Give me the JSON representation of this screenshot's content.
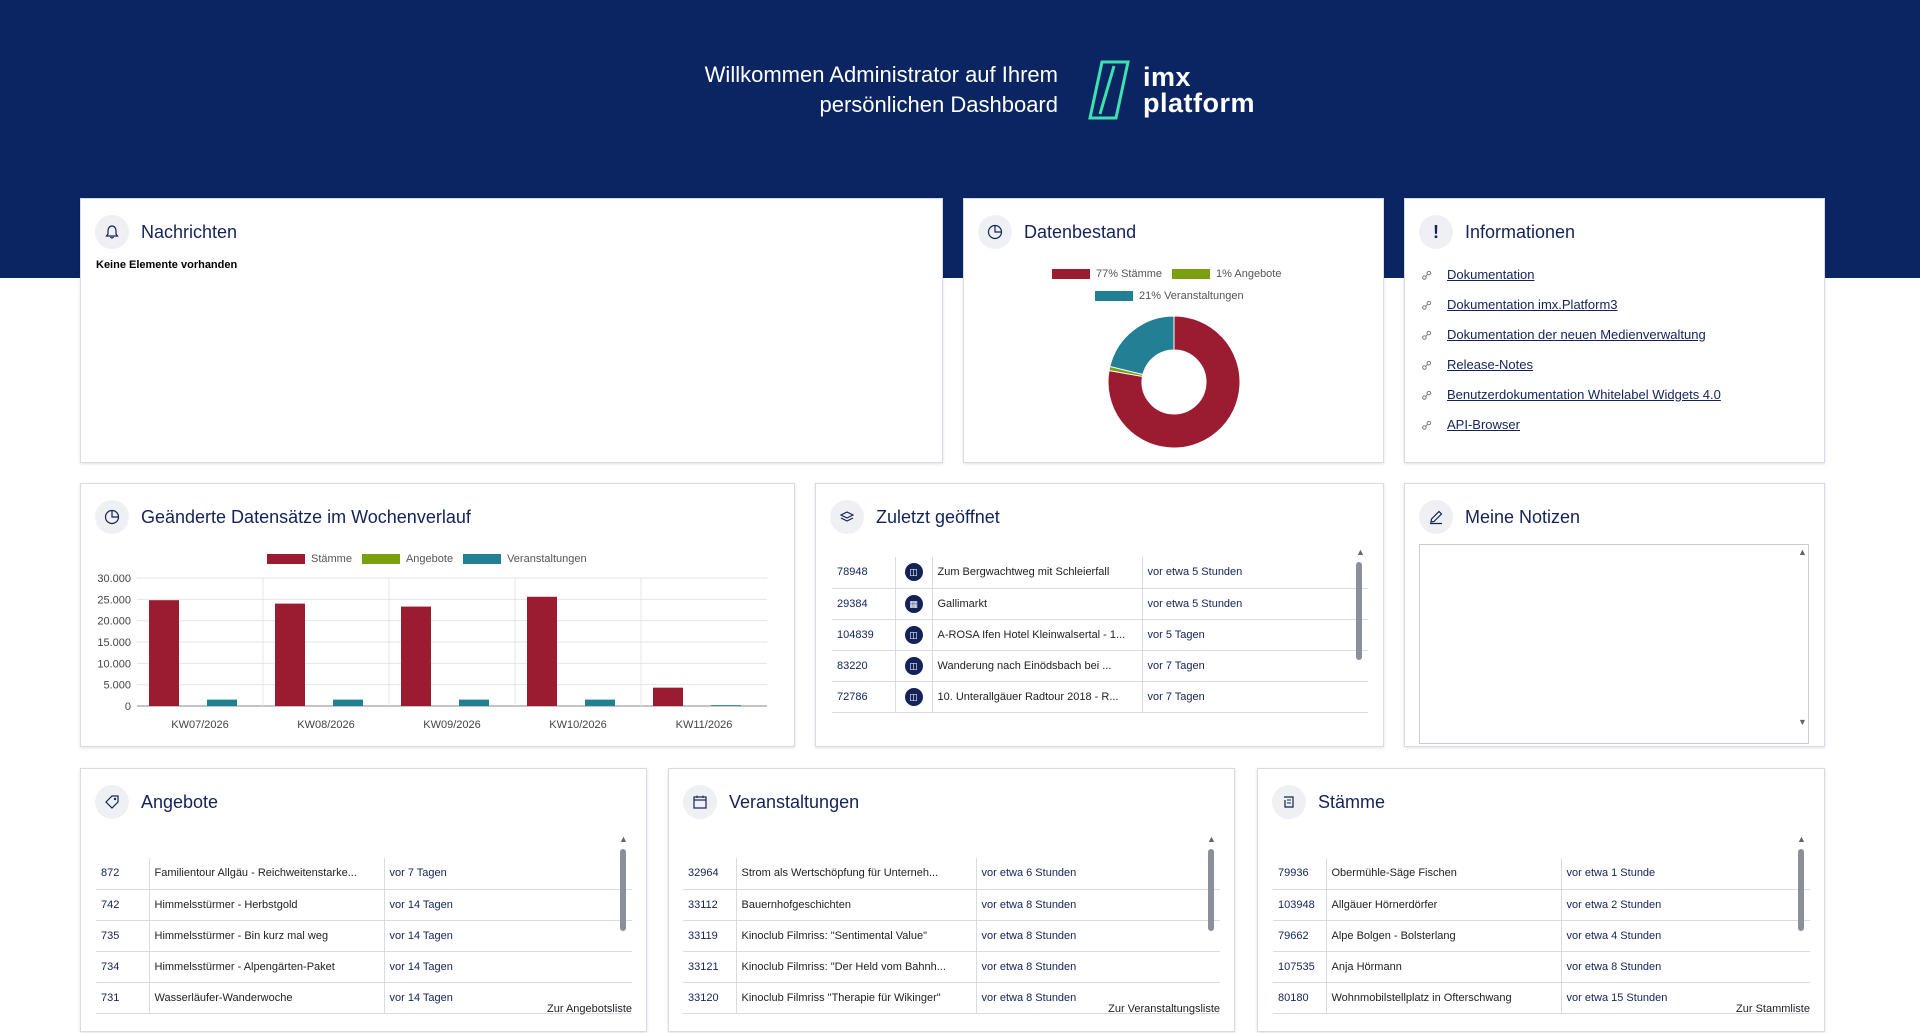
{
  "header": {
    "welcome_line1": "Willkommen Administrator auf Ihrem",
    "welcome_line2": "persönlichen Dashboard",
    "logo_line1": "imx",
    "logo_line2": "platform",
    "band_color": "#0b2563"
  },
  "nachrichten": {
    "title": "Nachrichten",
    "icon": "bell-icon",
    "empty_text": "Keine Elemente vorhanden"
  },
  "datenbestand": {
    "title": "Datenbestand",
    "icon": "pie-chart-icon",
    "legend": [
      {
        "label": "77% Stämme",
        "color": "#9b1b30"
      },
      {
        "label": "1% Angebote",
        "color": "#7aa010"
      },
      {
        "label": "21% Veranstaltungen",
        "color": "#237f93"
      }
    ],
    "chart_data": {
      "type": "pie",
      "categories": [
        "Stämme",
        "Angebote",
        "Veranstaltungen"
      ],
      "values": [
        77,
        1,
        21
      ],
      "colors": [
        "#9b1b30",
        "#7aa010",
        "#237f93"
      ]
    }
  },
  "informationen": {
    "title": "Informationen",
    "icon": "exclamation-icon",
    "links": [
      "Dokumentation",
      "Dokumentation imx.Platform3",
      "Dokumentation der neuen Medienverwaltung",
      "Release-Notes",
      "Benutzerdokumentation Whitelabel Widgets 4.0",
      "API-Browser"
    ]
  },
  "wochenverlauf": {
    "title": "Geänderte Datensätze im Wochenverlauf",
    "icon": "pie-chart-icon",
    "legend": [
      {
        "label": "Stämme",
        "color": "#9b1b30"
      },
      {
        "label": "Angebote",
        "color": "#7aa010"
      },
      {
        "label": "Veranstaltungen",
        "color": "#237f93"
      }
    ],
    "y_ticks": [
      "0",
      "5.000",
      "10.000",
      "15.000",
      "20.000",
      "25.000",
      "30.000"
    ],
    "chart_data": {
      "type": "bar",
      "categories": [
        "KW07/2026",
        "KW08/2026",
        "KW09/2026",
        "KW10/2026",
        "KW11/2026"
      ],
      "series": [
        {
          "name": "Stämme",
          "color": "#9b1b30",
          "values": [
            24800,
            24000,
            23300,
            25600,
            4300
          ]
        },
        {
          "name": "Angebote",
          "color": "#7aa010",
          "values": [
            0,
            0,
            0,
            0,
            0
          ]
        },
        {
          "name": "Veranstaltungen",
          "color": "#237f93",
          "values": [
            1500,
            1500,
            1500,
            1500,
            200
          ]
        }
      ],
      "ylim": [
        0,
        30000
      ],
      "grid": true,
      "legend": "top-center"
    }
  },
  "zuletzt": {
    "title": "Zuletzt geöffnet",
    "icon": "layers-icon",
    "rows": [
      {
        "id": "78948",
        "icon": "stamm-icon",
        "name": "Zum Bergwachtweg mit Schleierfall",
        "time": "vor etwa 5 Stunden"
      },
      {
        "id": "29384",
        "icon": "calendar-icon",
        "name": "Gallimarkt",
        "time": "vor etwa 5 Stunden"
      },
      {
        "id": "104839",
        "icon": "stamm-icon",
        "name": "A-ROSA Ifen Hotel Kleinwalsertal - 1...",
        "time": "vor 5 Tagen"
      },
      {
        "id": "83220",
        "icon": "stamm-icon",
        "name": "Wanderung nach Einödsbach bei ...",
        "time": "vor 7 Tagen"
      },
      {
        "id": "72786",
        "icon": "stamm-icon",
        "name": "10. Unterallgäuer Radtour 2018 - R...",
        "time": "vor 7 Tagen"
      }
    ]
  },
  "notizen": {
    "title": "Meine Notizen",
    "icon": "pencil-icon",
    "value": ""
  },
  "angebote": {
    "title": "Angebote",
    "icon": "tag-icon",
    "footer_link": "Zur Angebotsliste",
    "rows": [
      {
        "id": "872",
        "name": "Familientour Allgäu - Reichweitenstarke...",
        "time": "vor 7 Tagen"
      },
      {
        "id": "742",
        "name": "Himmelsstürmer - Herbstgold",
        "time": "vor 14 Tagen"
      },
      {
        "id": "735",
        "name": "Himmelsstürmer - Bin kurz mal weg",
        "time": "vor 14 Tagen"
      },
      {
        "id": "734",
        "name": "Himmelsstürmer - Alpengärten-Paket",
        "time": "vor 14 Tagen"
      },
      {
        "id": "731",
        "name": "Wasserläufer-Wanderwoche",
        "time": "vor 14 Tagen"
      }
    ]
  },
  "veranstaltungen": {
    "title": "Veranstaltungen",
    "icon": "calendar-icon",
    "footer_link": "Zur Veranstaltungsliste",
    "rows": [
      {
        "id": "32964",
        "name": "Strom als Wertschöpfung für Unterneh...",
        "time": "vor etwa 6 Stunden"
      },
      {
        "id": "33112",
        "name": "Bauernhofgeschichten",
        "time": "vor etwa 8 Stunden"
      },
      {
        "id": "33119",
        "name": "Kinoclub Filmriss: \"Sentimental Value\"",
        "time": "vor etwa 8 Stunden"
      },
      {
        "id": "33121",
        "name": "Kinoclub Filmriss: \"Der Held vom Bahnh...",
        "time": "vor etwa 8 Stunden"
      },
      {
        "id": "33120",
        "name": "Kinoclub Filmriss \"Therapie für Wikinger\"",
        "time": "vor etwa 8 Stunden"
      }
    ]
  },
  "staemme": {
    "title": "Stämme",
    "icon": "stamm-icon",
    "footer_link": "Zur Stammliste",
    "rows": [
      {
        "id": "79936",
        "name": "Obermühle-Säge Fischen",
        "time": "vor etwa 1 Stunde"
      },
      {
        "id": "103948",
        "name": "Allgäuer Hörnerdörfer",
        "time": "vor etwa 2 Stunden"
      },
      {
        "id": "79662",
        "name": "Alpe Bolgen - Bolsterlang",
        "time": "vor etwa 4 Stunden"
      },
      {
        "id": "107535",
        "name": "Anja Hörmann",
        "time": "vor etwa 8 Stunden"
      },
      {
        "id": "80180",
        "name": "Wohnmobilstellplatz in Ofterschwang",
        "time": "vor etwa 15 Stunden"
      }
    ]
  }
}
